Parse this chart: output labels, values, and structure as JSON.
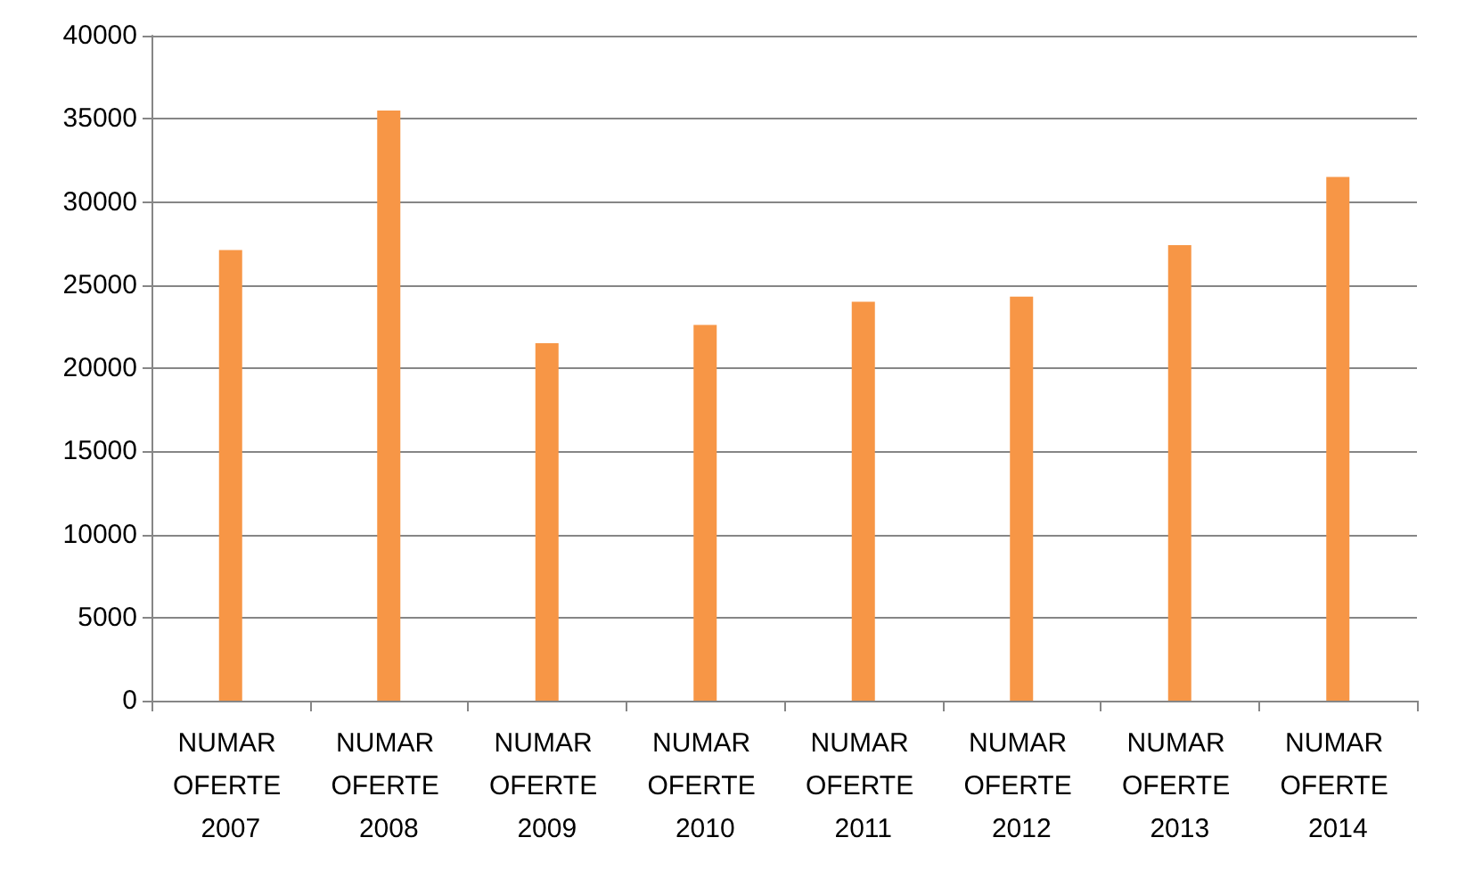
{
  "chart_data": {
    "type": "bar",
    "categories": [
      "NUMAR OFERTE 2007",
      "NUMAR OFERTE 2008",
      "NUMAR OFERTE 2009",
      "NUMAR OFERTE 2010",
      "NUMAR OFERTE 2011",
      "NUMAR OFERTE 2012",
      "NUMAR OFERTE 2013",
      "NUMAR OFERTE 2014"
    ],
    "values": [
      27100,
      35500,
      21500,
      22600,
      24000,
      24300,
      27400,
      31500
    ],
    "color": "#f79646",
    "ylim": [
      0,
      40000
    ],
    "yticks": [
      0,
      5000,
      10000,
      15000,
      20000,
      25000,
      30000,
      35000,
      40000
    ],
    "grid": "y"
  }
}
